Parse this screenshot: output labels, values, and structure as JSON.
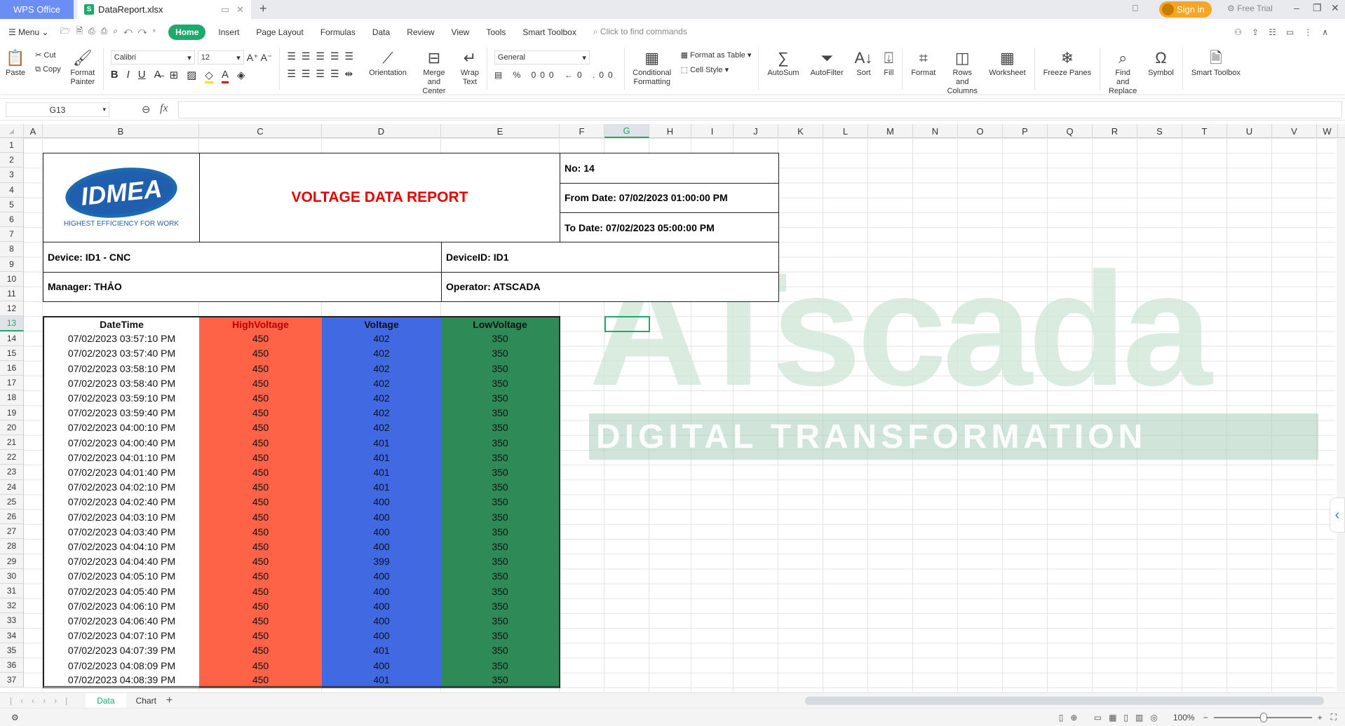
{
  "app": {
    "brand": "WPS Office",
    "file_tab": "DataReport.xlsx",
    "sign_in": "Sign in",
    "free_trial": "Free Trial"
  },
  "menu": {
    "menu_label": "Menu",
    "tabs": [
      "Home",
      "Insert",
      "Page Layout",
      "Formulas",
      "Data",
      "Review",
      "View",
      "Tools",
      "Smart Toolbox"
    ],
    "active_tab": "Home",
    "search_placeholder": "Click to find commands"
  },
  "ribbon": {
    "paste": "Paste",
    "cut": "Cut",
    "copy": "Copy",
    "format_painter": "Format Painter",
    "font_name": "Calibri",
    "font_size": "12",
    "orientation": "Orientation",
    "merge_center": "Merge and Center",
    "wrap_text": "Wrap Text",
    "number_format": "General",
    "conditional_formatting": "Conditional Formatting",
    "format_as_table": "Format as Table",
    "cell_style": "Cell Style",
    "autosum": "AutoSum",
    "autofilter": "AutoFilter",
    "sort": "Sort",
    "fill": "Fill",
    "format": "Format",
    "rows_columns": "Rows and Columns",
    "worksheet": "Worksheet",
    "freeze_panes": "Freeze Panes",
    "find_replace": "Find and Replace",
    "symbol": "Symbol",
    "smart_toolbox": "Smart Toolbox"
  },
  "formula_bar": {
    "name_box": "G13",
    "fx": "fx",
    "value": ""
  },
  "columns": [
    "A",
    "B",
    "C",
    "D",
    "E",
    "F",
    "G",
    "H",
    "I",
    "J",
    "K",
    "L",
    "M",
    "N",
    "O",
    "P",
    "Q",
    "R",
    "S",
    "T",
    "U",
    "V",
    "W"
  ],
  "selected_cell": {
    "column": "G",
    "row": 13
  },
  "report": {
    "logo_text": "IDMEA",
    "logo_tagline": "HIGHEST EFFICIENCY FOR WORK",
    "title": "VOLTAGE DATA REPORT",
    "no": "No: 14",
    "from_date": "From Date: 07/02/2023 01:00:00 PM",
    "to_date": "To Date: 07/02/2023 05:00:00 PM",
    "device": "Device: ID1 - CNC",
    "device_id": "DeviceID: ID1",
    "manager": "Manager: THẢO",
    "operator": "Operator: ATSCADA",
    "headers": [
      "DateTime",
      "HighVoltage",
      "Voltage",
      "LowVoltage"
    ],
    "colors": {
      "high": "#FF6347",
      "voltage": "#4169E1",
      "low": "#2E8B57",
      "title": "#E60000"
    },
    "rows": [
      [
        "07/02/2023 03:57:10 PM",
        "450",
        "402",
        "350"
      ],
      [
        "07/02/2023 03:57:40 PM",
        "450",
        "402",
        "350"
      ],
      [
        "07/02/2023 03:58:10 PM",
        "450",
        "402",
        "350"
      ],
      [
        "07/02/2023 03:58:40 PM",
        "450",
        "402",
        "350"
      ],
      [
        "07/02/2023 03:59:10 PM",
        "450",
        "402",
        "350"
      ],
      [
        "07/02/2023 03:59:40 PM",
        "450",
        "402",
        "350"
      ],
      [
        "07/02/2023 04:00:10 PM",
        "450",
        "402",
        "350"
      ],
      [
        "07/02/2023 04:00:40 PM",
        "450",
        "401",
        "350"
      ],
      [
        "07/02/2023 04:01:10 PM",
        "450",
        "401",
        "350"
      ],
      [
        "07/02/2023 04:01:40 PM",
        "450",
        "401",
        "350"
      ],
      [
        "07/02/2023 04:02:10 PM",
        "450",
        "401",
        "350"
      ],
      [
        "07/02/2023 04:02:40 PM",
        "450",
        "400",
        "350"
      ],
      [
        "07/02/2023 04:03:10 PM",
        "450",
        "400",
        "350"
      ],
      [
        "07/02/2023 04:03:40 PM",
        "450",
        "400",
        "350"
      ],
      [
        "07/02/2023 04:04:10 PM",
        "450",
        "400",
        "350"
      ],
      [
        "07/02/2023 04:04:40 PM",
        "450",
        "399",
        "350"
      ],
      [
        "07/02/2023 04:05:10 PM",
        "450",
        "400",
        "350"
      ],
      [
        "07/02/2023 04:05:40 PM",
        "450",
        "400",
        "350"
      ],
      [
        "07/02/2023 04:06:10 PM",
        "450",
        "400",
        "350"
      ],
      [
        "07/02/2023 04:06:40 PM",
        "450",
        "400",
        "350"
      ],
      [
        "07/02/2023 04:07:10 PM",
        "450",
        "400",
        "350"
      ],
      [
        "07/02/2023 04:07:39 PM",
        "450",
        "401",
        "350"
      ],
      [
        "07/02/2023 04:08:09 PM",
        "450",
        "400",
        "350"
      ],
      [
        "07/02/2023 04:08:39 PM",
        "450",
        "401",
        "350"
      ]
    ]
  },
  "watermark": {
    "big": "ATscada",
    "band": "DIGITAL TRANSFORMATION"
  },
  "sheets": {
    "tabs": [
      "Data",
      "Chart"
    ],
    "active": "Data"
  },
  "status": {
    "zoom": "100%",
    "zoom_level_percent": 100
  }
}
